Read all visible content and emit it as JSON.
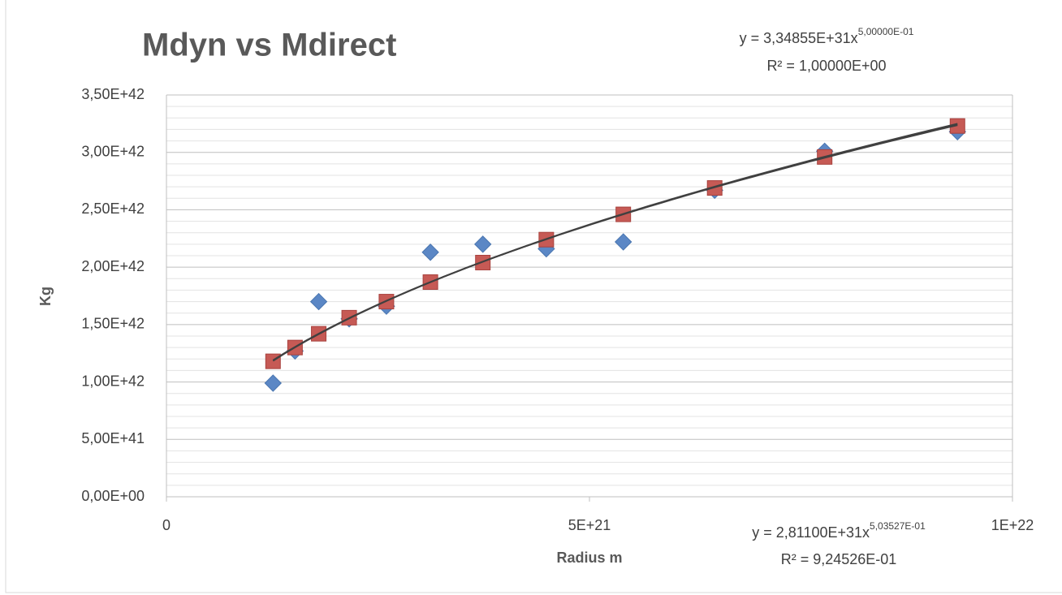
{
  "chart_data": {
    "type": "scatter",
    "title": "Mdyn vs Mdirect",
    "xlabel": "Radius m",
    "ylabel": "Kg",
    "xlim": [
      0,
      1e+22
    ],
    "xticks": [
      0,
      {
        "value": 5e+21,
        "label": "5E+21"
      },
      {
        "value": 1e+22,
        "label": "1E+22"
      }
    ],
    "ylim": [
      0,
      3.5e+42
    ],
    "yticks": [
      {
        "value": 0,
        "label": "0,00E+00"
      },
      {
        "value": 5e+41,
        "label": "5,00E+41"
      },
      {
        "value": 1e+42,
        "label": "1,00E+42"
      },
      {
        "value": 1.5e+42,
        "label": "1,50E+42"
      },
      {
        "value": 2e+42,
        "label": "2,00E+42"
      },
      {
        "value": 2.5e+42,
        "label": "2,50E+42"
      },
      {
        "value": 3e+42,
        "label": "3,00E+42"
      },
      {
        "value": 3.5e+42,
        "label": "3,50E+42"
      }
    ],
    "yminorticks": [
      1e+41,
      2e+41,
      3e+41,
      4e+41,
      6e+41,
      7e+41,
      8e+41,
      9e+41,
      1.1e+42,
      1.2e+42,
      1.3e+42,
      1.4e+42,
      1.6e+42,
      1.7e+42,
      1.8e+42,
      1.9e+42,
      2.1e+42,
      2.2e+42,
      2.3e+42,
      2.4e+42,
      2.6e+42,
      2.7e+42,
      2.8e+42,
      2.9e+42,
      3.1e+42,
      3.2e+42,
      3.3e+42,
      3.4e+42
    ],
    "grid": true,
    "series": [
      {
        "color": "#5b87c5",
        "marker": "diamond",
        "x": [
          1.26e+21,
          1.52e+21,
          1.8e+21,
          2.16e+21,
          2.6e+21,
          3.12e+21,
          3.74e+21,
          4.49e+21,
          5.4e+21,
          6.48e+21,
          7.78e+21,
          9.35e+21
        ],
        "values": [
          9.9e+41,
          1.27e+42,
          1.7e+42,
          1.55e+42,
          1.66e+42,
          2.13e+42,
          2.2e+42,
          2.16e+42,
          2.22e+42,
          2.67e+42,
          3.01e+42,
          3.18e+42
        ]
      },
      {
        "color": "#c65a55",
        "marker": "square",
        "x": [
          1.26e+21,
          1.52e+21,
          1.8e+21,
          2.16e+21,
          2.6e+21,
          3.12e+21,
          3.74e+21,
          4.49e+21,
          5.4e+21,
          6.48e+21,
          7.78e+21,
          9.35e+21
        ],
        "values": [
          1.18e+42,
          1.3e+42,
          1.42e+42,
          1.56e+42,
          1.7e+42,
          1.87e+42,
          2.04e+42,
          2.24e+42,
          2.46e+42,
          2.69e+42,
          2.96e+42,
          3.23e+42
        ]
      }
    ],
    "trendlines": [
      {
        "equation": "y = 3,34855E+31x",
        "exponent_label": "5,00000E-01",
        "r2": "R² = 1,00000E+00",
        "coefficient": 3.34855e+31,
        "exponent": 0.5
      },
      {
        "equation": "y = 2,81100E+31x",
        "exponent_label": "5,03527E-01",
        "r2": "R² = 9,24526E-01",
        "coefficient": 2.811e+31,
        "exponent": 0.503527
      }
    ]
  }
}
